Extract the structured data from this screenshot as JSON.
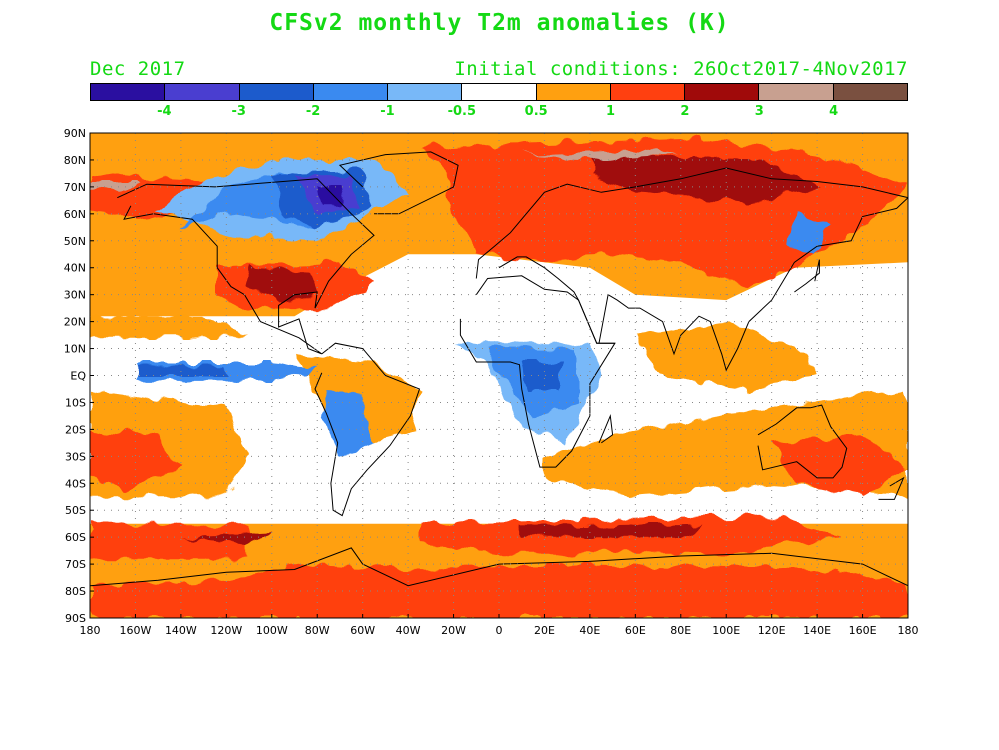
{
  "title": "CFSv2 monthly T2m anomalies (K)",
  "subtitle_left": "Dec 2017",
  "subtitle_right": "Initial conditions: 26Oct2017-4Nov2017",
  "text_color": "#14d914",
  "colorbar": {
    "colors": [
      "#2a0fa0",
      "#4a3ed0",
      "#1c5bcc",
      "#3a8af0",
      "#78b8f8",
      "#ffffff",
      "#ffa010",
      "#ff4010",
      "#a00a0a",
      "#c8a090",
      "#7a5040"
    ],
    "labels": [
      "-4",
      "-3",
      "-2",
      "-1",
      "-0.5",
      "0.5",
      "1",
      "2",
      "3",
      "4"
    ]
  },
  "axes": {
    "lat_labels": [
      "90N",
      "80N",
      "70N",
      "60N",
      "50N",
      "40N",
      "30N",
      "20N",
      "10N",
      "EQ",
      "10S",
      "20S",
      "30S",
      "40S",
      "50S",
      "60S",
      "70S",
      "80S",
      "90S"
    ],
    "lon_labels": [
      "180",
      "160W",
      "140W",
      "120W",
      "100W",
      "80W",
      "60W",
      "40W",
      "20W",
      "0",
      "20E",
      "40E",
      "60E",
      "80E",
      "100E",
      "120E",
      "140E",
      "160E",
      "180"
    ]
  }
}
